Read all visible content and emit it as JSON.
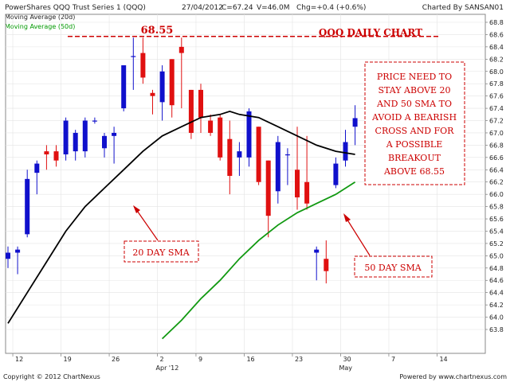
{
  "header": {
    "instrument": "PowerShares QQQ Trust Series 1 (QQQ)",
    "date": "27/04/2012",
    "close": "C=67.24",
    "volume": "V=46.0M",
    "change": "Chg=+0.4 (+0.6%)",
    "charted_by": "Charted By SANSAN01"
  },
  "legend": [
    {
      "label": "Moving Average (20d)",
      "color": "#000000"
    },
    {
      "label": "Moving Average (50d)",
      "color": "#009900"
    }
  ],
  "footer": {
    "copyright": "Copyright © 2012 ChartNexus",
    "powered": "Powered by www.chartnexus.com"
  },
  "colors": {
    "up": "#1010cc",
    "down": "#e01010",
    "sma20": "#000000",
    "sma50": "#119911",
    "annotation": "#cc0000"
  },
  "annotations": {
    "title": "QQQ DAILY CHART",
    "resistance_label": "68.55",
    "note_lines": [
      "PRICE NEED TO",
      "STAY ABOVE 20",
      "AND  50 SMA TO",
      "AVOID A BEARISH",
      "CROSS AND FOR",
      "A POSSIBLE",
      "BREAKOUT",
      "ABOVE 68.55"
    ],
    "sma20_label": "20 DAY SMA",
    "sma50_label": "50 DAY SMA"
  },
  "chart_data": {
    "type": "candlestick",
    "ylim": [
      63.8,
      68.8
    ],
    "y_ticks": [
      63.8,
      64.0,
      64.2,
      64.4,
      64.6,
      64.8,
      65.0,
      65.2,
      65.4,
      65.6,
      65.8,
      66.0,
      66.2,
      66.4,
      66.6,
      66.8,
      67.0,
      67.2,
      67.4,
      67.6,
      67.8,
      68.0,
      68.2,
      68.4,
      68.6,
      68.8
    ],
    "x_ticks": [
      {
        "label": "12",
        "index": 0.5
      },
      {
        "label": "19",
        "index": 5.5
      },
      {
        "label": "26",
        "index": 10.5
      },
      {
        "label": "2",
        "index": 15.5
      },
      {
        "label": "9",
        "index": 19.5
      },
      {
        "label": "16",
        "index": 24.5
      },
      {
        "label": "23",
        "index": 29.5
      },
      {
        "label": "30",
        "index": 34.5
      },
      {
        "label": "7",
        "index": 39.5
      },
      {
        "label": "14",
        "index": 44.5
      }
    ],
    "month_labels": [
      {
        "label": "Apr '12",
        "index": 15.5
      },
      {
        "label": "May",
        "index": 34.5
      }
    ],
    "resistance": 68.55,
    "candles": [
      {
        "o": 64.95,
        "h": 65.15,
        "l": 64.8,
        "c": 65.05
      },
      {
        "o": 65.05,
        "h": 65.15,
        "l": 64.7,
        "c": 65.1
      },
      {
        "o": 65.35,
        "h": 66.4,
        "l": 65.3,
        "c": 66.25
      },
      {
        "o": 66.35,
        "h": 66.55,
        "l": 66.0,
        "c": 66.5
      },
      {
        "o": 66.7,
        "h": 66.8,
        "l": 66.4,
        "c": 66.65
      },
      {
        "o": 66.7,
        "h": 66.8,
        "l": 66.45,
        "c": 66.55
      },
      {
        "o": 66.65,
        "h": 67.25,
        "l": 66.55,
        "c": 67.2
      },
      {
        "o": 66.7,
        "h": 67.05,
        "l": 66.55,
        "c": 67.0
      },
      {
        "o": 66.7,
        "h": 67.25,
        "l": 66.6,
        "c": 67.2
      },
      {
        "o": 67.2,
        "h": 67.25,
        "l": 67.15,
        "c": 67.2
      },
      {
        "o": 66.75,
        "h": 67.0,
        "l": 66.6,
        "c": 66.95
      },
      {
        "o": 66.95,
        "h": 67.1,
        "l": 66.5,
        "c": 67.0
      },
      {
        "o": 67.4,
        "h": 68.1,
        "l": 67.35,
        "c": 68.1
      },
      {
        "o": 68.25,
        "h": 68.55,
        "l": 67.7,
        "c": 68.25
      },
      {
        "o": 68.3,
        "h": 68.55,
        "l": 67.8,
        "c": 67.9
      },
      {
        "o": 67.65,
        "h": 67.7,
        "l": 67.3,
        "c": 67.6
      },
      {
        "o": 67.5,
        "h": 68.1,
        "l": 67.2,
        "c": 68.0
      },
      {
        "o": 68.2,
        "h": 68.2,
        "l": 67.25,
        "c": 67.45
      },
      {
        "o": 68.4,
        "h": 68.55,
        "l": 67.4,
        "c": 68.3
      },
      {
        "o": 67.7,
        "h": 67.7,
        "l": 66.9,
        "c": 67.0
      },
      {
        "o": 67.7,
        "h": 67.8,
        "l": 67.0,
        "c": 67.25
      },
      {
        "o": 67.2,
        "h": 67.3,
        "l": 66.95,
        "c": 67.0
      },
      {
        "o": 67.25,
        "h": 67.3,
        "l": 66.55,
        "c": 66.6
      },
      {
        "o": 66.9,
        "h": 67.2,
        "l": 66.0,
        "c": 66.3
      },
      {
        "o": 66.6,
        "h": 66.85,
        "l": 66.3,
        "c": 66.7
      },
      {
        "o": 66.6,
        "h": 67.4,
        "l": 66.45,
        "c": 67.35
      },
      {
        "o": 67.1,
        "h": 67.1,
        "l": 66.15,
        "c": 66.2
      },
      {
        "o": 66.55,
        "h": 66.55,
        "l": 65.3,
        "c": 65.65
      },
      {
        "o": 66.05,
        "h": 66.95,
        "l": 65.85,
        "c": 66.85
      },
      {
        "o": 66.65,
        "h": 66.75,
        "l": 66.15,
        "c": 66.65
      },
      {
        "o": 66.4,
        "h": 67.1,
        "l": 65.75,
        "c": 65.95
      },
      {
        "o": 66.2,
        "h": 66.95,
        "l": 65.75,
        "c": 65.85
      },
      {
        "o": 65.05,
        "h": 65.15,
        "l": 64.6,
        "c": 65.1
      },
      {
        "o": 64.95,
        "h": 65.25,
        "l": 64.55,
        "c": 64.75
      },
      {
        "o": 66.15,
        "h": 66.6,
        "l": 66.1,
        "c": 66.5
      },
      {
        "o": 66.55,
        "h": 67.05,
        "l": 66.45,
        "c": 66.85
      },
      {
        "o": 67.1,
        "h": 67.45,
        "l": 66.8,
        "c": 67.24
      }
    ],
    "series": [
      {
        "name": "Moving Average (20d)",
        "x_index": [
          0,
          2,
          4,
          6,
          8,
          10,
          12,
          14,
          16,
          18,
          20,
          22,
          23,
          24,
          26,
          28,
          30,
          32,
          34,
          36
        ],
        "values": [
          63.9,
          64.4,
          64.9,
          65.4,
          65.8,
          66.1,
          66.4,
          66.7,
          66.95,
          67.1,
          67.25,
          67.3,
          67.35,
          67.3,
          67.25,
          67.1,
          66.95,
          66.8,
          66.7,
          66.65
        ]
      },
      {
        "name": "Moving Average (50d)",
        "x_index": [
          16,
          18,
          20,
          22,
          24,
          26,
          28,
          30,
          32,
          34,
          36
        ],
        "values": [
          63.65,
          63.95,
          64.3,
          64.6,
          64.95,
          65.25,
          65.5,
          65.7,
          65.85,
          66.0,
          66.2
        ]
      }
    ]
  }
}
